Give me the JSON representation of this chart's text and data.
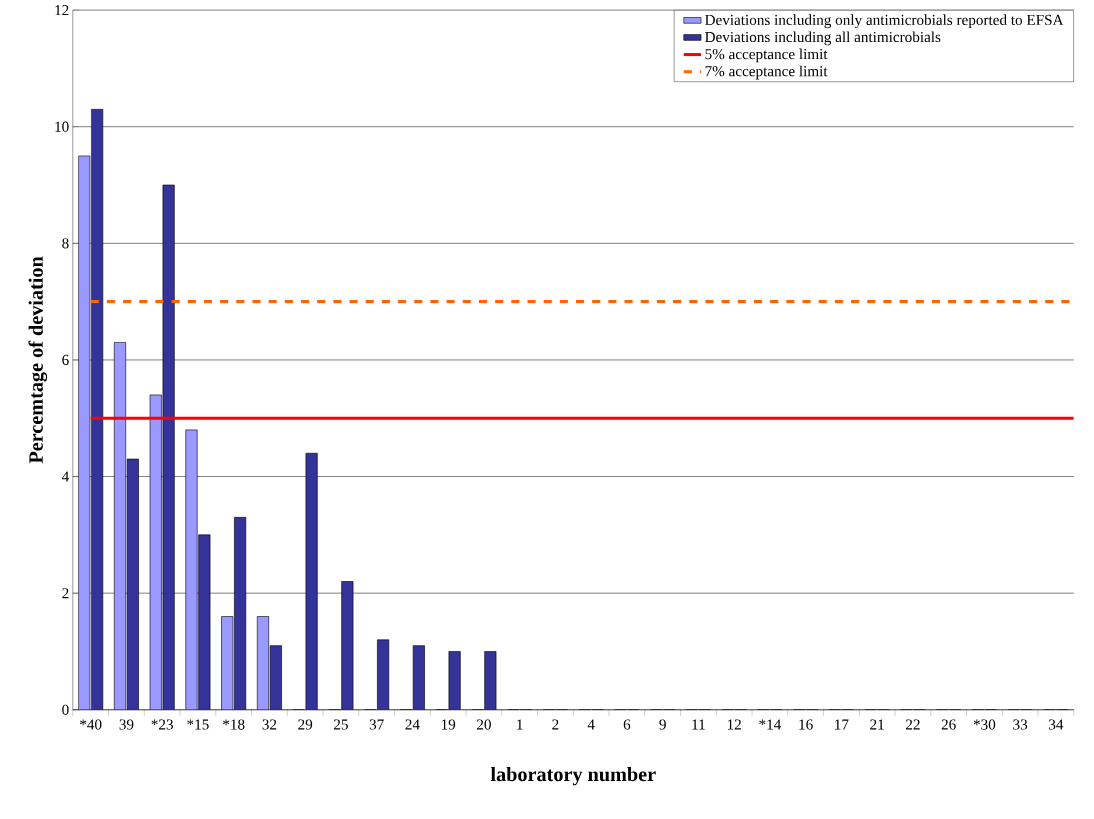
{
  "chart_data": {
    "type": "bar",
    "xlabel": "laboratory number",
    "ylabel": "Percemtage of deviation",
    "categories": [
      "*40",
      "39",
      "*23",
      "*15",
      "*18",
      "32",
      "29",
      "25",
      "37",
      "24",
      "19",
      "20",
      "1",
      "2",
      "4",
      "6",
      "9",
      "11",
      "12",
      "*14",
      "16",
      "17",
      "21",
      "22",
      "26",
      "*30",
      "33",
      "34"
    ],
    "series": [
      {
        "name": "Deviations including only antimicrobials reported to EFSA",
        "color": "#9999ff",
        "values": [
          9.5,
          6.3,
          5.4,
          4.8,
          1.6,
          1.6,
          0,
          0,
          0,
          0,
          0,
          0,
          0,
          0,
          0,
          0,
          0,
          0,
          0,
          0,
          0,
          0,
          0,
          0,
          0,
          0,
          0,
          0
        ]
      },
      {
        "name": "Deviations including all antimicrobials",
        "color": "#333399",
        "values": [
          10.3,
          4.3,
          9.0,
          3.0,
          3.3,
          1.1,
          4.4,
          2.2,
          1.2,
          1.1,
          1.0,
          1.0,
          0,
          0,
          0,
          0,
          0,
          0,
          0,
          0,
          0,
          0,
          0,
          0,
          0,
          0,
          0,
          0
        ]
      }
    ],
    "ref_lines": [
      {
        "axis": "y",
        "value": 5,
        "label": "5% acceptance limit",
        "color": "#ff0000",
        "line_style": "solid"
      },
      {
        "axis": "y",
        "value": 7,
        "label": "7% acceptance limit",
        "color": "#ff6600",
        "line_style": "dashed"
      }
    ],
    "ylim": [
      0,
      12
    ],
    "yticks": [
      0,
      2,
      4,
      6,
      8,
      10,
      12
    ],
    "grid": "y",
    "legend": "top right"
  }
}
